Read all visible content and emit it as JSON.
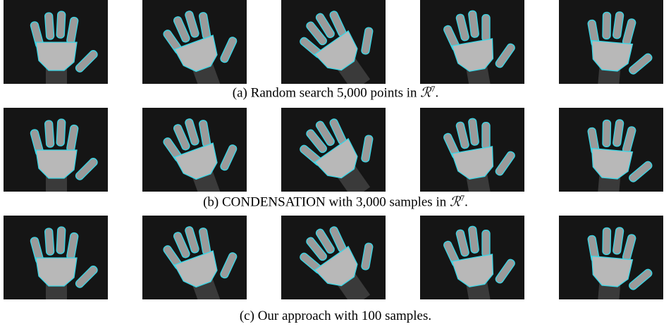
{
  "captions": [
    {
      "label": "(a)",
      "text": "Random search 5,000 points in",
      "math": "ℛ",
      "sup": "7",
      "end": "."
    },
    {
      "label": "(b)",
      "text": "CONDENSATION with 3,000 samples in",
      "math": "ℛ",
      "sup": "7",
      "end": "."
    },
    {
      "label": "(c)",
      "text": "Our approach with 100 samples."
    }
  ]
}
